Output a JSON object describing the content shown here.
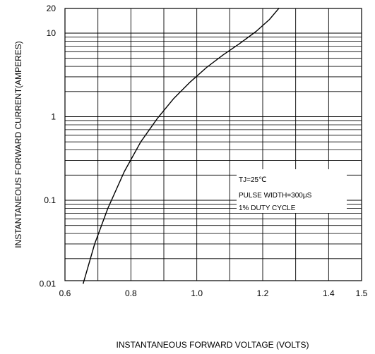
{
  "chart_data": {
    "type": "line",
    "title": "",
    "xlabel": "INSTANTANEOUS FORWARD VOLTAGE (VOLTS)",
    "ylabel": "INSTANTANEOUS FORWARD CURRENT(AMPERES)",
    "xlim": [
      0.6,
      1.5
    ],
    "ylim": [
      0.01,
      20
    ],
    "yscale": "log",
    "grid": true,
    "x_tick_labels": [
      "0.6",
      "0.8",
      "1.0",
      "1.2",
      "1.4",
      "1.5"
    ],
    "y_tick_labels": [
      "0.01",
      "0.1",
      "1",
      "10",
      "20"
    ],
    "series": [
      {
        "x": [
          0.655,
          0.69,
          0.73,
          0.78,
          0.83,
          0.88,
          0.93,
          0.98,
          1.03,
          1.08,
          1.13,
          1.18,
          1.22,
          1.25
        ],
        "y": [
          0.01,
          0.03,
          0.08,
          0.22,
          0.5,
          0.95,
          1.65,
          2.6,
          3.9,
          5.5,
          7.5,
          10.5,
          14.5,
          20
        ]
      }
    ],
    "annotations": [
      "TJ=25℃",
      "PULSE WIDTH=300μS",
      "1% DUTY CYCLE"
    ]
  }
}
